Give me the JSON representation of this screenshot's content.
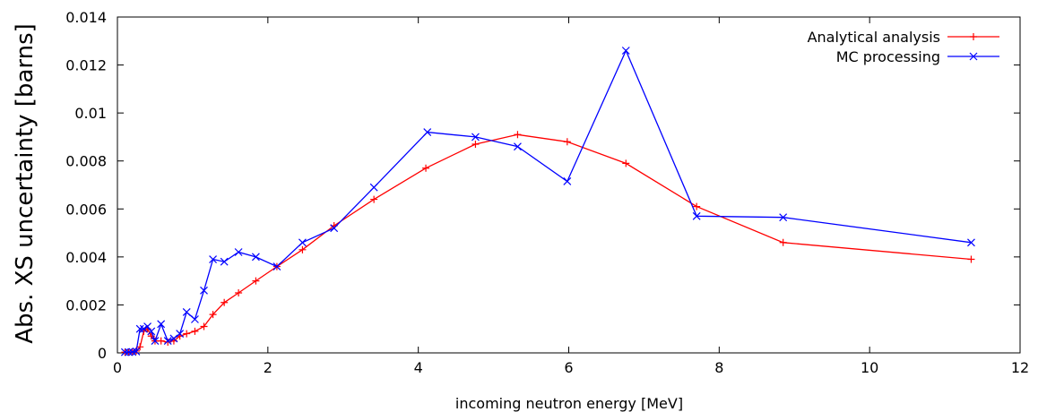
{
  "chart_data": {
    "type": "line",
    "xlabel": "incoming neutron energy [MeV]",
    "ylabel": "Abs. XS uncertainty [barns]",
    "xlim": [
      0,
      12
    ],
    "ylim": [
      0,
      0.014
    ],
    "grid": false,
    "legend_position": "top-right",
    "x_ticks": [
      0,
      2,
      4,
      6,
      8,
      10,
      12
    ],
    "y_ticks": [
      0,
      0.002,
      0.004,
      0.006,
      0.008,
      0.01,
      0.012,
      0.014
    ],
    "x_tick_labels": [
      "0",
      "2",
      "4",
      "6",
      "8",
      "10",
      "12"
    ],
    "y_tick_labels": [
      "0",
      "0.002",
      "0.004",
      "0.006",
      "0.008",
      "0.01",
      "0.012",
      "0.014"
    ],
    "series": [
      {
        "name": "Analytical analysis",
        "color": "#ff0000",
        "marker": "plus",
        "x": [
          0.1,
          0.15,
          0.2,
          0.25,
          0.3,
          0.35,
          0.4,
          0.45,
          0.5,
          0.58,
          0.67,
          0.75,
          0.83,
          0.92,
          1.03,
          1.15,
          1.27,
          1.42,
          1.61,
          1.84,
          2.12,
          2.46,
          2.88,
          3.41,
          4.1,
          4.76,
          5.32,
          5.98,
          6.76,
          7.7,
          8.85,
          11.35
        ],
        "y": [
          3e-05,
          3e-05,
          4e-05,
          8e-05,
          0.00025,
          0.0009,
          0.001,
          0.0007,
          0.0005,
          0.0005,
          0.00045,
          0.0005,
          0.0007,
          0.0008,
          0.0009,
          0.0011,
          0.0016,
          0.0021,
          0.0025,
          0.003,
          0.0036,
          0.0043,
          0.0053,
          0.0064,
          0.0077,
          0.0087,
          0.0091,
          0.0088,
          0.0079,
          0.0061,
          0.0046,
          0.0039
        ]
      },
      {
        "name": "MC processing",
        "color": "#0000ff",
        "marker": "x",
        "x": [
          0.1,
          0.15,
          0.2,
          0.25,
          0.3,
          0.35,
          0.4,
          0.45,
          0.5,
          0.58,
          0.67,
          0.75,
          0.83,
          0.92,
          1.03,
          1.15,
          1.27,
          1.42,
          1.61,
          1.84,
          2.12,
          2.46,
          2.88,
          3.41,
          4.12,
          4.76,
          5.32,
          5.98,
          6.76,
          7.7,
          8.85,
          11.35
        ],
        "y": [
          3e-05,
          3e-05,
          4e-05,
          6e-05,
          0.001,
          0.001,
          0.0011,
          0.0009,
          0.0005,
          0.0012,
          0.0005,
          0.0006,
          0.0008,
          0.0017,
          0.0014,
          0.0026,
          0.0039,
          0.0038,
          0.0042,
          0.004,
          0.0036,
          0.0046,
          0.0052,
          0.0069,
          0.0092,
          0.009,
          0.0086,
          0.00715,
          0.0126,
          0.0057,
          0.00565,
          0.0046
        ]
      }
    ]
  }
}
